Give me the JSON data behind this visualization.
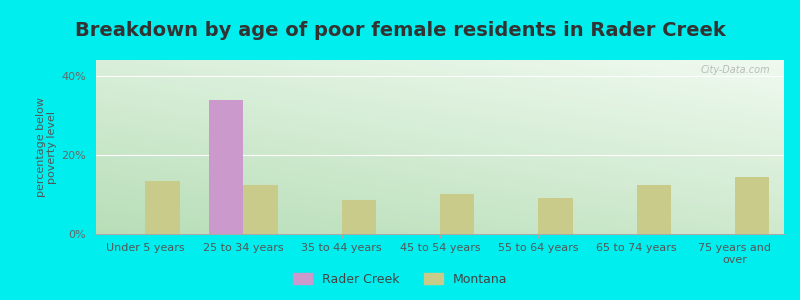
{
  "categories": [
    "Under 5 years",
    "25 to 34 years",
    "35 to 44 years",
    "45 to 54 years",
    "55 to 64 years",
    "65 to 74 years",
    "75 years and\nover"
  ],
  "rader_creek": [
    0,
    34.0,
    0,
    0,
    0,
    0,
    0
  ],
  "montana": [
    13.5,
    12.5,
    8.5,
    10.0,
    9.0,
    12.5,
    14.5
  ],
  "title": "Breakdown by age of poor female residents in Rader Creek",
  "ylabel": "percentage below\npoverty level",
  "rader_color": "#cc99cc",
  "montana_color": "#c8cb8a",
  "ylim_max": 44,
  "yticks": [
    0,
    20,
    40
  ],
  "ytick_labels": [
    "0%",
    "20%",
    "40%"
  ],
  "bg_color": "#00eeee",
  "plot_bg_topleft": "#b8ddb8",
  "plot_bg_topright": "#ddeedd",
  "plot_bg_bottom": "#eef8ee",
  "bar_width": 0.35,
  "title_fontsize": 14,
  "title_color": "#333333",
  "axis_label_fontsize": 8,
  "tick_fontsize": 8,
  "legend_fontsize": 9,
  "watermark": "City-Data.com"
}
